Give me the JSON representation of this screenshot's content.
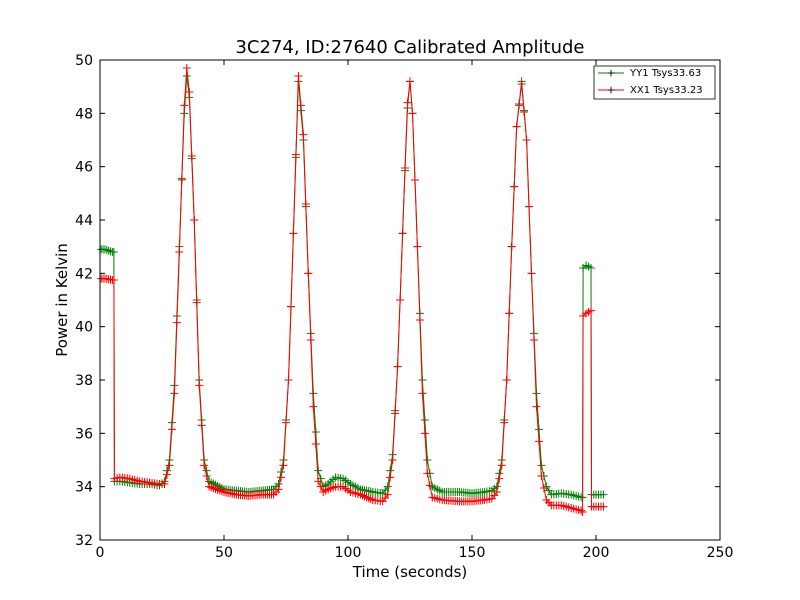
{
  "chart_data": {
    "type": "line",
    "title": "3C274, ID:27640 Calibrated Amplitude",
    "xlabel": "Time (seconds)",
    "ylabel": "Power in Kelvin",
    "xlim": [
      0,
      250
    ],
    "ylim": [
      32,
      50
    ],
    "xticks": [
      0,
      50,
      100,
      150,
      200,
      250
    ],
    "yticks": [
      32,
      34,
      36,
      38,
      40,
      42,
      44,
      46,
      48,
      50
    ],
    "grid": false,
    "legend_position": "top-right",
    "marker": "+",
    "series": [
      {
        "name": "YY1 Tsys33.63",
        "color": "#008000",
        "points": [
          [
            0.5,
            42.9
          ],
          [
            2,
            42.9
          ],
          [
            3.5,
            42.85
          ],
          [
            5,
            42.8
          ],
          [
            5.6,
            42.8
          ],
          [
            5.8,
            34.2
          ],
          [
            8,
            34.2
          ],
          [
            12,
            34.15
          ],
          [
            16,
            34.1
          ],
          [
            20,
            34.1
          ],
          [
            24,
            34.05
          ],
          [
            26,
            34.2
          ],
          [
            28,
            35.0
          ],
          [
            30,
            37.8
          ],
          [
            32,
            43.0
          ],
          [
            34,
            48.0
          ],
          [
            35,
            49.4
          ],
          [
            36,
            48.6
          ],
          [
            38,
            44.0
          ],
          [
            40,
            38.0
          ],
          [
            42,
            35.0
          ],
          [
            44,
            34.2
          ],
          [
            50,
            33.9
          ],
          [
            55,
            33.85
          ],
          [
            60,
            33.8
          ],
          [
            65,
            33.85
          ],
          [
            70,
            33.9
          ],
          [
            72,
            34.1
          ],
          [
            74,
            35.0
          ],
          [
            76,
            38.0
          ],
          [
            78,
            43.5
          ],
          [
            80,
            49.2
          ],
          [
            82,
            47.0
          ],
          [
            84,
            42.0
          ],
          [
            86,
            37.5
          ],
          [
            88,
            34.6
          ],
          [
            90,
            34.0
          ],
          [
            92,
            34.1
          ],
          [
            95,
            34.35
          ],
          [
            98,
            34.3
          ],
          [
            101,
            34.1
          ],
          [
            105,
            33.9
          ],
          [
            110,
            33.8
          ],
          [
            114,
            33.75
          ],
          [
            116,
            34.0
          ],
          [
            118,
            35.2
          ],
          [
            120,
            38.5
          ],
          [
            122,
            43.5
          ],
          [
            124,
            48.2
          ],
          [
            125,
            49.2
          ],
          [
            126,
            48.0
          ],
          [
            128,
            43.0
          ],
          [
            130,
            38.0
          ],
          [
            132,
            35.0
          ],
          [
            134,
            34.0
          ],
          [
            138,
            33.8
          ],
          [
            145,
            33.8
          ],
          [
            150,
            33.75
          ],
          [
            155,
            33.8
          ],
          [
            158,
            33.85
          ],
          [
            160,
            34.0
          ],
          [
            162,
            35.0
          ],
          [
            164,
            38.0
          ],
          [
            166,
            43.0
          ],
          [
            168,
            47.5
          ],
          [
            170,
            49.2
          ],
          [
            172,
            47.0
          ],
          [
            174,
            42.0
          ],
          [
            176,
            37.5
          ],
          [
            178,
            34.8
          ],
          [
            180,
            34.0
          ],
          [
            182,
            33.7
          ],
          [
            186,
            33.75
          ],
          [
            190,
            33.7
          ],
          [
            194,
            33.6
          ],
          [
            194.6,
            33.6
          ],
          [
            194.8,
            42.2
          ],
          [
            196,
            42.3
          ],
          [
            198,
            42.2
          ],
          [
            198.2,
            33.7
          ],
          [
            200,
            33.7
          ],
          [
            203,
            33.7
          ]
        ]
      },
      {
        "name": "XX1 Tsys33.23",
        "color": "#ff0000",
        "points": [
          [
            0.5,
            41.8
          ],
          [
            2,
            41.8
          ],
          [
            3.5,
            41.78
          ],
          [
            5,
            41.75
          ],
          [
            5.6,
            41.75
          ],
          [
            5.8,
            34.3
          ],
          [
            8,
            34.35
          ],
          [
            12,
            34.3
          ],
          [
            16,
            34.2
          ],
          [
            20,
            34.15
          ],
          [
            24,
            34.1
          ],
          [
            26,
            34.1
          ],
          [
            28,
            34.8
          ],
          [
            30,
            37.5
          ],
          [
            32,
            42.8
          ],
          [
            34,
            48.3
          ],
          [
            35,
            49.7
          ],
          [
            36,
            48.8
          ],
          [
            38,
            44.0
          ],
          [
            40,
            37.8
          ],
          [
            42,
            34.8
          ],
          [
            44,
            34.0
          ],
          [
            50,
            33.8
          ],
          [
            55,
            33.7
          ],
          [
            60,
            33.65
          ],
          [
            65,
            33.7
          ],
          [
            70,
            33.7
          ],
          [
            72,
            33.9
          ],
          [
            74,
            34.8
          ],
          [
            76,
            38.0
          ],
          [
            78,
            43.5
          ],
          [
            80,
            49.4
          ],
          [
            82,
            47.2
          ],
          [
            84,
            42.0
          ],
          [
            86,
            37.0
          ],
          [
            88,
            34.2
          ],
          [
            90,
            33.8
          ],
          [
            92,
            33.9
          ],
          [
            95,
            34.0
          ],
          [
            98,
            34.0
          ],
          [
            101,
            33.8
          ],
          [
            105,
            33.7
          ],
          [
            110,
            33.5
          ],
          [
            114,
            33.45
          ],
          [
            116,
            33.7
          ],
          [
            118,
            35.0
          ],
          [
            120,
            38.5
          ],
          [
            122,
            43.5
          ],
          [
            124,
            48.4
          ],
          [
            125,
            49.2
          ],
          [
            126,
            48.0
          ],
          [
            128,
            43.0
          ],
          [
            130,
            37.5
          ],
          [
            132,
            34.5
          ],
          [
            134,
            33.6
          ],
          [
            138,
            33.5
          ],
          [
            145,
            33.45
          ],
          [
            150,
            33.45
          ],
          [
            155,
            33.5
          ],
          [
            158,
            33.55
          ],
          [
            160,
            33.8
          ],
          [
            162,
            34.8
          ],
          [
            164,
            38.0
          ],
          [
            166,
            43.0
          ],
          [
            168,
            47.5
          ],
          [
            170,
            49.1
          ],
          [
            172,
            47.0
          ],
          [
            174,
            42.0
          ],
          [
            176,
            37.0
          ],
          [
            178,
            34.4
          ],
          [
            180,
            33.5
          ],
          [
            182,
            33.3
          ],
          [
            186,
            33.3
          ],
          [
            190,
            33.2
          ],
          [
            194,
            33.1
          ],
          [
            194.6,
            33.05
          ],
          [
            194.8,
            40.4
          ],
          [
            196,
            40.5
          ],
          [
            198,
            40.6
          ],
          [
            198.2,
            33.25
          ],
          [
            200,
            33.25
          ],
          [
            203,
            33.25
          ]
        ]
      }
    ]
  }
}
